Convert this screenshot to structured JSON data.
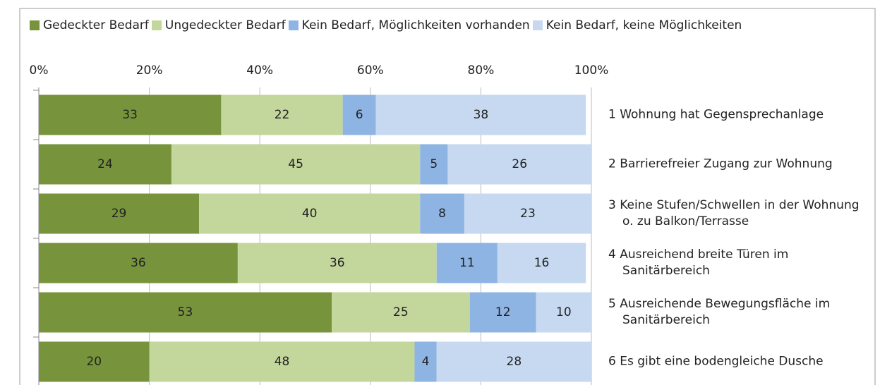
{
  "chart_data": {
    "type": "bar",
    "orientation": "horizontal",
    "stacked": true,
    "categories": [
      "1 Wohnung hat Gegensprechanlage",
      "2 Barrierefreier Zugang zur Wohnung",
      "3 Keine Stufen/Schwellen in der Wohnung o. zu Balkon/Terrasse",
      "4 Ausreichend breite Türen im Sanitärbereich",
      "5 Ausreichende Bewegungsfläche im Sanitärbereich",
      "6 Es gibt eine bodengleiche Dusche"
    ],
    "series": [
      {
        "name": "Gedeckter Bedarf",
        "color": "#77933c",
        "values": [
          33,
          24,
          29,
          36,
          53,
          20
        ]
      },
      {
        "name": "Ungedeckter Bedarf",
        "color": "#c3d69b",
        "values": [
          22,
          45,
          40,
          36,
          25,
          48
        ]
      },
      {
        "name": "Kein Bedarf, Möglichkeiten vorhanden",
        "color": "#8eb4e3",
        "values": [
          6,
          5,
          8,
          11,
          12,
          4
        ]
      },
      {
        "name": "Kein Bedarf, keine Möglichkeiten",
        "color": "#c6d9f1",
        "values": [
          38,
          26,
          23,
          16,
          10,
          28
        ]
      }
    ],
    "xlim": [
      0,
      100
    ],
    "xticks": [
      {
        "value": 0,
        "label": "0%"
      },
      {
        "value": 20,
        "label": "20%"
      },
      {
        "value": 40,
        "label": "40%"
      },
      {
        "value": 60,
        "label": "60%"
      },
      {
        "value": 80,
        "label": "80%"
      },
      {
        "value": 100,
        "label": "100%"
      }
    ],
    "grid": true,
    "legend": "top"
  }
}
